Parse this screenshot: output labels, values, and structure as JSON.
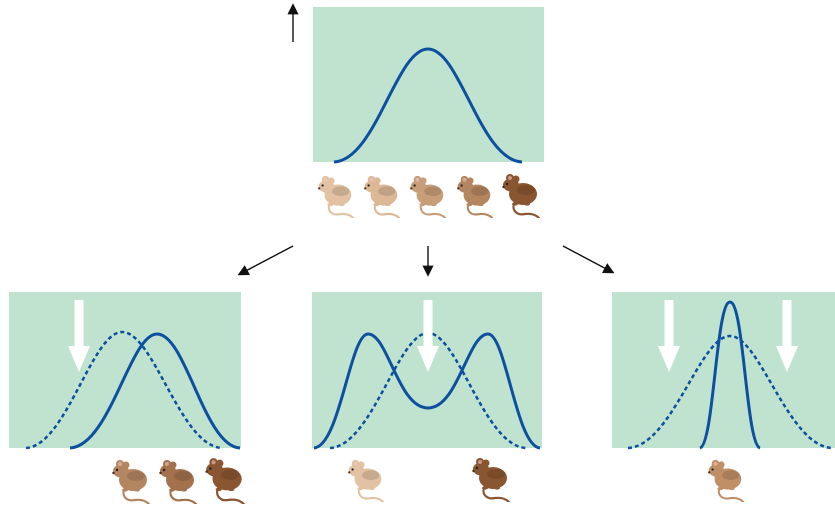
{
  "colors": {
    "panel_fill": "#bfe3cf",
    "curve": "#0d4fa0",
    "arrow": "#111111",
    "selection_arrow": "#ffffff",
    "mouse_light": "#e2c2a2",
    "mouse_medium": "#b98a63",
    "mouse_dark": "#8a5631"
  },
  "icons": {
    "mouse": "mouse-icon",
    "selection_arrow": "down-arrow-icon",
    "pointer_arrow": "arrow-icon"
  },
  "panels": [
    {
      "name": "original-population-panel",
      "curves": [
        "solid-normal"
      ],
      "selection_arrows": 0,
      "mice": [
        "light",
        "light",
        "medium-light",
        "medium",
        "dark"
      ]
    },
    {
      "name": "directional-selection-panel",
      "curves": [
        "dashed-normal",
        "solid-shifted-right"
      ],
      "selection_arrows": 1,
      "mice": [
        "medium",
        "medium",
        "dark"
      ]
    },
    {
      "name": "disruptive-selection-panel",
      "curves": [
        "dashed-normal",
        "solid-bimodal"
      ],
      "selection_arrows": 1,
      "mice": [
        "light",
        "dark"
      ]
    },
    {
      "name": "stabilizing-selection-panel",
      "curves": [
        "dashed-normal",
        "solid-narrow"
      ],
      "selection_arrows": 2,
      "mice": [
        "medium"
      ]
    }
  ]
}
